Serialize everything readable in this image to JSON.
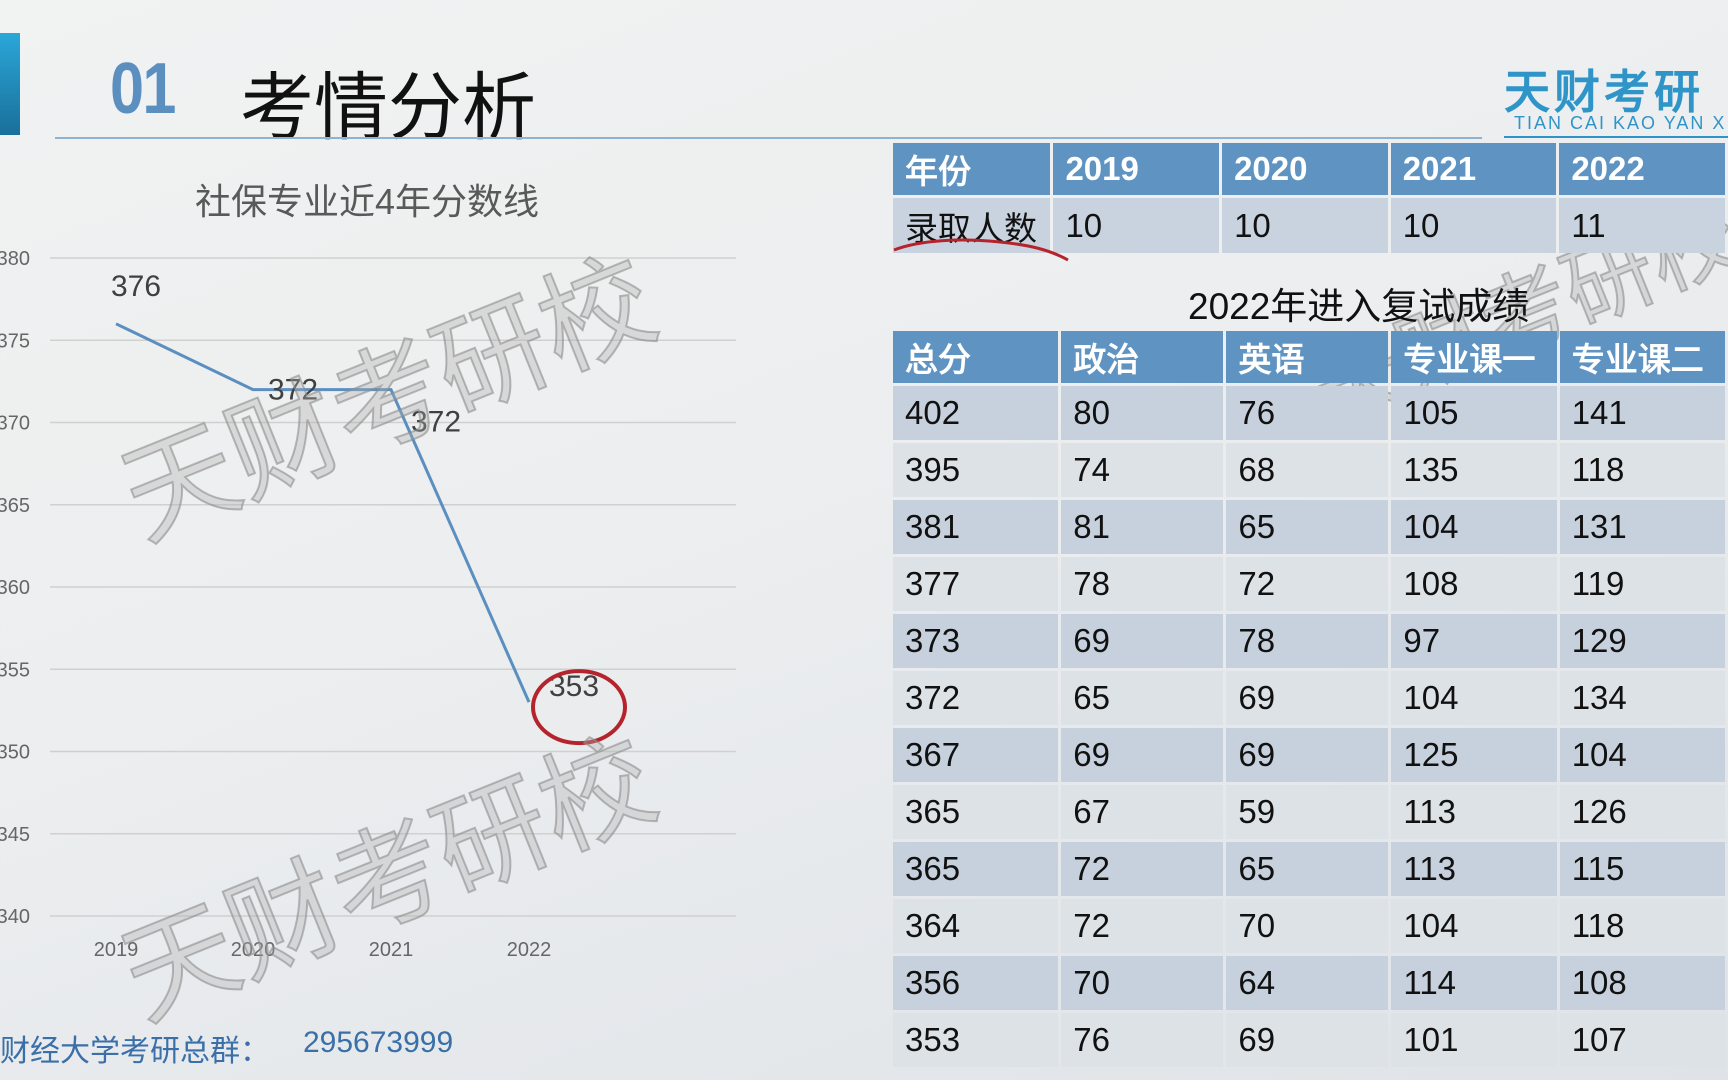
{
  "header": {
    "section_number": "01",
    "title": "考情分析"
  },
  "logo": {
    "name_cn": "天财考研",
    "name_en": "TIAN CAI KAO YAN X"
  },
  "watermark": "天财考研校",
  "chart_data": {
    "type": "line",
    "title": "社保专业近4年分数线",
    "categories": [
      "2019",
      "2020",
      "2021",
      "2022"
    ],
    "values": [
      376,
      372,
      372,
      353
    ],
    "data_labels": [
      "376",
      "372",
      "372",
      "353"
    ],
    "ylim": [
      340,
      380
    ],
    "yticks": [
      340,
      345,
      350,
      355,
      360,
      365,
      370,
      375,
      380
    ],
    "grid": true,
    "line_color": "#5b8fc0",
    "highlight": {
      "category": "2022",
      "color": "#b5242c"
    }
  },
  "admission_table": {
    "headers": [
      "年份",
      "2019",
      "2020",
      "2021",
      "2022"
    ],
    "row": [
      "录取人数",
      "10",
      "10",
      "10",
      "11"
    ],
    "underline_color": "#b5242c"
  },
  "scores_table": {
    "title": "2022年进入复试成绩",
    "headers": [
      "总分",
      "政治",
      "英语",
      "专业课一",
      "专业课二"
    ],
    "rows": [
      [
        "402",
        "80",
        "76",
        "105",
        "141"
      ],
      [
        "395",
        "74",
        "68",
        "135",
        "118"
      ],
      [
        "381",
        "81",
        "65",
        "104",
        "131"
      ],
      [
        "377",
        "78",
        "72",
        "108",
        "119"
      ],
      [
        "373",
        "69",
        "78",
        "97",
        "129"
      ],
      [
        "372",
        "65",
        "69",
        "104",
        "134"
      ],
      [
        "367",
        "69",
        "69",
        "125",
        "104"
      ],
      [
        "365",
        "67",
        "59",
        "113",
        "126"
      ],
      [
        "365",
        "72",
        "65",
        "113",
        "115"
      ],
      [
        "364",
        "72",
        "70",
        "104",
        "118"
      ],
      [
        "356",
        "70",
        "64",
        "114",
        "108"
      ],
      [
        "353",
        "76",
        "69",
        "101",
        "107"
      ]
    ]
  },
  "footer": {
    "label": "财经大学考研总群：",
    "number": "295673999"
  }
}
